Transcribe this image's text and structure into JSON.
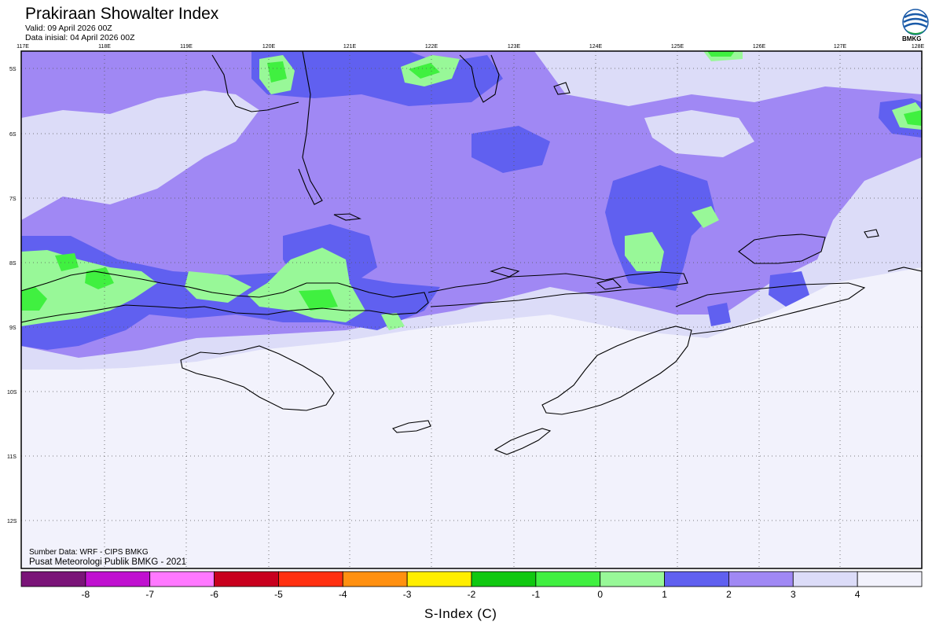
{
  "header": {
    "title": "Prakiraan Showalter Index",
    "valid": "Valid: 09 April 2026 00Z",
    "initial": "Data inisial: 04 April 2026 00Z",
    "logo_text": "BMKG"
  },
  "axes": {
    "lon_labels": [
      "117E",
      "118E",
      "119E",
      "120E",
      "121E",
      "122E",
      "123E",
      "124E",
      "125E",
      "126E",
      "127E",
      "128E"
    ],
    "lat_labels": [
      "5S",
      "6S",
      "7S",
      "8S",
      "9S",
      "10S",
      "11S",
      "12S"
    ]
  },
  "credits": {
    "source": "Sumber Data: WRF - CIPS BMKG",
    "org": "Pusat Meteorologi Publik BMKG - 2021"
  },
  "legend": {
    "title": "S-Index (C)",
    "labels": [
      "-8",
      "-7",
      "-6",
      "-5",
      "-4",
      "-3",
      "-2",
      "-1",
      "0",
      "1",
      "2",
      "3",
      "4"
    ],
    "colors": [
      "#7a1478",
      "#c010d0",
      "#ff78ff",
      "#c8001e",
      "#ff3010",
      "#ff9010",
      "#ffee00",
      "#10c810",
      "#40f040",
      "#98f898",
      "#6060f0",
      "#a088f4",
      "#dcdcf8",
      "#f2f2fc"
    ]
  },
  "palette": {
    "background": "#f2f2fc",
    "very_light": "#dcdcf8",
    "light_purple": "#a088f4",
    "blue": "#6060f0",
    "light_green": "#98f898",
    "green": "#40f040",
    "coast": "#000000",
    "grid": "#555555"
  }
}
